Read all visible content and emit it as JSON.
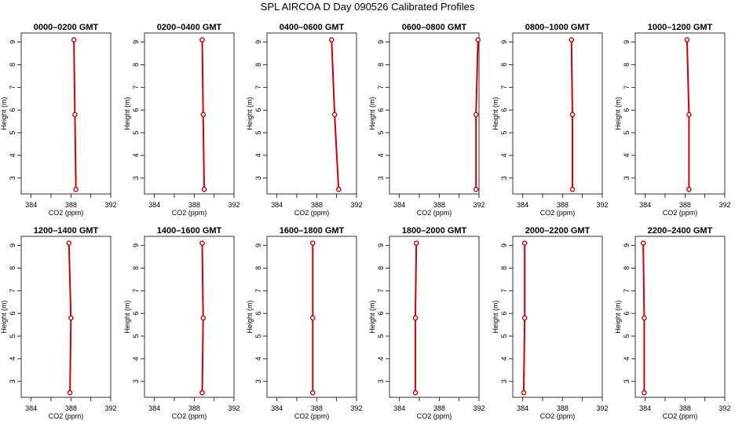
{
  "figure": {
    "title": "SPL AIRCOA D  Day 090526  Calibrated Profiles"
  },
  "colors": {
    "profile": "#cc0000",
    "axes": "#000000",
    "background": "#ffffff"
  },
  "chart_data": [
    {
      "type": "line",
      "title": "0000–0200 GMT",
      "xlabel": "CO2 (ppm)",
      "ylabel": "Height (m)",
      "xlim": [
        383,
        392
      ],
      "ylim": [
        2.3,
        9.4
      ],
      "xticks": [
        384,
        388,
        392
      ],
      "xminor": [
        386,
        390
      ],
      "yticks": [
        3,
        4,
        5,
        6,
        7,
        8,
        9
      ],
      "series": [
        {
          "x": [
            388.5,
            388.4,
            388.3
          ],
          "y": [
            2.5,
            5.8,
            9.1
          ]
        }
      ]
    },
    {
      "type": "line",
      "title": "0200–0400 GMT",
      "xlabel": "CO2 (ppm)",
      "ylabel": "Height (m)",
      "xlim": [
        383,
        392
      ],
      "ylim": [
        2.3,
        9.4
      ],
      "xticks": [
        384,
        388,
        392
      ],
      "xminor": [
        386,
        390
      ],
      "yticks": [
        3,
        4,
        5,
        6,
        7,
        8,
        9
      ],
      "series": [
        {
          "x": [
            389.0,
            388.9,
            388.8
          ],
          "y": [
            2.5,
            5.8,
            9.1
          ]
        }
      ]
    },
    {
      "type": "line",
      "title": "0400–0600 GMT",
      "xlabel": "CO2 (ppm)",
      "ylabel": "Height (m)",
      "xlim": [
        383,
        392
      ],
      "ylim": [
        2.3,
        9.4
      ],
      "xticks": [
        384,
        388,
        392
      ],
      "xminor": [
        386,
        390
      ],
      "yticks": [
        3,
        4,
        5,
        6,
        7,
        8,
        9
      ],
      "series": [
        {
          "x": [
            390.2,
            389.8,
            389.5
          ],
          "y": [
            2.5,
            5.8,
            9.1
          ]
        }
      ]
    },
    {
      "type": "line",
      "title": "0600–0800 GMT",
      "xlabel": "CO2 (ppm)",
      "ylabel": "Height (m)",
      "xlim": [
        383,
        392
      ],
      "ylim": [
        2.3,
        9.4
      ],
      "xticks": [
        384,
        388,
        392
      ],
      "xminor": [
        386,
        390
      ],
      "yticks": [
        3,
        4,
        5,
        6,
        7,
        8,
        9
      ],
      "series": [
        {
          "x": [
            391.7,
            391.7,
            391.9
          ],
          "y": [
            2.5,
            5.8,
            9.1
          ]
        }
      ]
    },
    {
      "type": "line",
      "title": "0800–1000 GMT",
      "xlabel": "CO2 (ppm)",
      "ylabel": "Height (m)",
      "xlim": [
        383,
        392
      ],
      "ylim": [
        2.3,
        9.4
      ],
      "xticks": [
        384,
        388,
        392
      ],
      "xminor": [
        386,
        390
      ],
      "yticks": [
        3,
        4,
        5,
        6,
        7,
        8,
        9
      ],
      "series": [
        {
          "x": [
            389.0,
            389.0,
            388.9
          ],
          "y": [
            2.5,
            5.8,
            9.1
          ]
        }
      ]
    },
    {
      "type": "line",
      "title": "1000–1200 GMT",
      "xlabel": "CO2 (ppm)",
      "ylabel": "Height (m)",
      "xlim": [
        383,
        392
      ],
      "ylim": [
        2.3,
        9.4
      ],
      "xticks": [
        384,
        388,
        392
      ],
      "xminor": [
        386,
        390
      ],
      "yticks": [
        3,
        4,
        5,
        6,
        7,
        8,
        9
      ],
      "series": [
        {
          "x": [
            388.4,
            388.4,
            388.2
          ],
          "y": [
            2.5,
            5.8,
            9.1
          ]
        }
      ]
    },
    {
      "type": "line",
      "title": "1200–1400 GMT",
      "xlabel": "CO2 (ppm)",
      "ylabel": "Height (m)",
      "xlim": [
        383,
        392
      ],
      "ylim": [
        2.3,
        9.4
      ],
      "xticks": [
        384,
        388,
        392
      ],
      "xminor": [
        386,
        390
      ],
      "yticks": [
        3,
        4,
        5,
        6,
        7,
        8,
        9
      ],
      "series": [
        {
          "x": [
            387.9,
            388.0,
            387.8
          ],
          "y": [
            2.5,
            5.8,
            9.1
          ]
        }
      ]
    },
    {
      "type": "line",
      "title": "1400–1600 GMT",
      "xlabel": "CO2 (ppm)",
      "ylabel": "Height (m)",
      "xlim": [
        383,
        392
      ],
      "ylim": [
        2.3,
        9.4
      ],
      "xticks": [
        384,
        388,
        392
      ],
      "xminor": [
        386,
        390
      ],
      "yticks": [
        3,
        4,
        5,
        6,
        7,
        8,
        9
      ],
      "series": [
        {
          "x": [
            388.8,
            388.9,
            388.8
          ],
          "y": [
            2.5,
            5.8,
            9.1
          ]
        }
      ]
    },
    {
      "type": "line",
      "title": "1600–1800 GMT",
      "xlabel": "CO2 (ppm)",
      "ylabel": "Height (m)",
      "xlim": [
        383,
        392
      ],
      "ylim": [
        2.3,
        9.4
      ],
      "xticks": [
        384,
        388,
        392
      ],
      "xminor": [
        386,
        390
      ],
      "yticks": [
        3,
        4,
        5,
        6,
        7,
        8,
        9
      ],
      "series": [
        {
          "x": [
            387.6,
            387.6,
            387.6
          ],
          "y": [
            2.5,
            5.8,
            9.1
          ]
        }
      ]
    },
    {
      "type": "line",
      "title": "1800–2000 GMT",
      "xlabel": "CO2 (ppm)",
      "ylabel": "Height (m)",
      "xlim": [
        383,
        392
      ],
      "ylim": [
        2.3,
        9.4
      ],
      "xticks": [
        384,
        388,
        392
      ],
      "xminor": [
        386,
        390
      ],
      "yticks": [
        3,
        4,
        5,
        6,
        7,
        8,
        9
      ],
      "series": [
        {
          "x": [
            385.6,
            385.6,
            385.7
          ],
          "y": [
            2.5,
            5.8,
            9.1
          ]
        }
      ]
    },
    {
      "type": "line",
      "title": "2000–2200 GMT",
      "xlabel": "CO2 (ppm)",
      "ylabel": "Height (m)",
      "xlim": [
        383,
        392
      ],
      "ylim": [
        2.3,
        9.4
      ],
      "xticks": [
        384,
        388,
        392
      ],
      "xminor": [
        386,
        390
      ],
      "yticks": [
        3,
        4,
        5,
        6,
        7,
        8,
        9
      ],
      "series": [
        {
          "x": [
            384.1,
            384.2,
            384.2
          ],
          "y": [
            2.5,
            5.8,
            9.1
          ]
        }
      ]
    },
    {
      "type": "line",
      "title": "2200–2400 GMT",
      "xlabel": "CO2 (ppm)",
      "ylabel": "Height (m)",
      "xlim": [
        383,
        392
      ],
      "ylim": [
        2.3,
        9.4
      ],
      "xticks": [
        384,
        388,
        392
      ],
      "xminor": [
        386,
        390
      ],
      "yticks": [
        3,
        4,
        5,
        6,
        7,
        8,
        9
      ],
      "series": [
        {
          "x": [
            383.9,
            383.9,
            383.8
          ],
          "y": [
            2.5,
            5.8,
            9.1
          ]
        }
      ]
    }
  ]
}
